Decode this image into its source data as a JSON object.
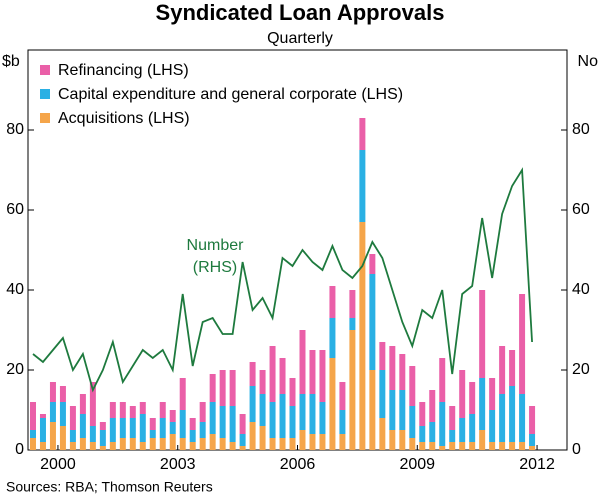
{
  "chart_data": {
    "type": "bar",
    "title": "Syndicated Loan Approvals",
    "subtitle": "Quarterly",
    "y_label": "$b",
    "y2_label": "No",
    "source": "Sources: RBA; Thomson Reuters",
    "stacked": true,
    "x": [
      1999.875,
      2000.125,
      2000.375,
      2000.625,
      2000.875,
      2001.125,
      2001.375,
      2001.625,
      2001.875,
      2002.125,
      2002.375,
      2002.625,
      2002.875,
      2003.125,
      2003.375,
      2003.625,
      2003.875,
      2004.125,
      2004.375,
      2004.625,
      2004.875,
      2005.125,
      2005.375,
      2005.625,
      2005.875,
      2006.125,
      2006.375,
      2006.625,
      2006.875,
      2007.125,
      2007.375,
      2007.625,
      2007.875,
      2008.125,
      2008.375,
      2008.625,
      2008.875,
      2009.125,
      2009.375,
      2009.625,
      2009.875,
      2010.125,
      2010.375,
      2010.625,
      2010.875,
      2011.125,
      2011.375,
      2011.625,
      2011.875,
      2012.125,
      2012.375
    ],
    "series": [
      {
        "name": "Refinancing (LHS)",
        "color": "#ea5fa8",
        "values": [
          7,
          1,
          5,
          4,
          6,
          5,
          11,
          2,
          4,
          4,
          3,
          3,
          3,
          4,
          3,
          8,
          3,
          5,
          7,
          9,
          9,
          5,
          6,
          6,
          14,
          9,
          7,
          16,
          11,
          13,
          8,
          7,
          7,
          8,
          5,
          7,
          11,
          9,
          10,
          6,
          8,
          11,
          6,
          12,
          8,
          22,
          8,
          12,
          9,
          25,
          7
        ]
      },
      {
        "name": "Capital expenditure and general corporate (LHS)",
        "color": "#2ab0e4",
        "values": [
          2,
          6,
          5,
          6,
          3,
          6,
          4,
          4,
          6,
          5,
          5,
          7,
          2,
          5,
          3,
          7,
          3,
          4,
          8,
          8,
          9,
          3,
          9,
          8,
          9,
          11,
          8,
          9,
          10,
          8,
          10,
          6,
          3,
          18,
          24,
          12,
          10,
          10,
          8,
          4,
          5,
          11,
          3,
          6,
          7,
          13,
          8,
          12,
          14,
          12,
          3
        ]
      },
      {
        "name": "Acquisitions (LHS)",
        "color": "#f5a54a",
        "values": [
          3,
          2,
          7,
          6,
          2,
          3,
          2,
          1,
          2,
          3,
          3,
          2,
          3,
          3,
          4,
          3,
          2,
          3,
          4,
          3,
          2,
          1,
          7,
          6,
          3,
          3,
          3,
          5,
          4,
          4,
          23,
          4,
          30,
          57,
          20,
          8,
          5,
          5,
          3,
          2,
          2,
          1,
          2,
          2,
          2,
          5,
          2,
          2,
          2,
          2,
          1
        ]
      }
    ],
    "line": {
      "color": "#1e7a3e",
      "axis": "y2",
      "label": [
        "Number",
        "(RHS)"
      ],
      "values": [
        24,
        22,
        25,
        28,
        20,
        24,
        15,
        20,
        27,
        17,
        21,
        25,
        23,
        25,
        20,
        39,
        21,
        32,
        33,
        29,
        29,
        47,
        35,
        38,
        33,
        48,
        46,
        50,
        47,
        45,
        51,
        45,
        43,
        46,
        52,
        48,
        40,
        32,
        26,
        35,
        33,
        40,
        19,
        39,
        41,
        58,
        43,
        59,
        66,
        70,
        27
      ]
    },
    "xlim": [
      1999.75,
      2013.25
    ],
    "xticks": [
      {
        "value": 2000.5,
        "label": "2000"
      },
      {
        "value": 2003.5,
        "label": "2003"
      },
      {
        "value": 2006.5,
        "label": "2006"
      },
      {
        "value": 2009.5,
        "label": "2009"
      },
      {
        "value": 2012.5,
        "label": "2012"
      }
    ],
    "ylim": [
      0,
      100
    ],
    "yticks": [
      0,
      20,
      40,
      60,
      80
    ],
    "y2lim": [
      0,
      100
    ],
    "y2ticks": [
      0,
      20,
      40,
      60,
      80
    ],
    "grid": false
  }
}
